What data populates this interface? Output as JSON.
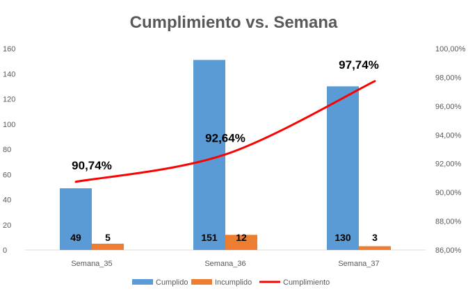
{
  "chart_data": {
    "type": "bar",
    "title": "Cumplimiento vs. Semana",
    "categories": [
      "Semana_35",
      "Semana_36",
      "Semana_37"
    ],
    "series": [
      {
        "name": "Cumplido",
        "kind": "bar",
        "axis": "left",
        "color": "#5B9BD5",
        "values": [
          49,
          151,
          130
        ]
      },
      {
        "name": "Incumplido",
        "kind": "bar",
        "axis": "left",
        "color": "#ED7D31",
        "values": [
          5,
          12,
          3
        ]
      },
      {
        "name": "Cumplimiento",
        "kind": "line",
        "axis": "right",
        "smooth": true,
        "color": "#FF0000",
        "values": [
          90.74,
          92.64,
          97.74
        ],
        "labels": [
          "90,74%",
          "92,64%",
          "97,74%"
        ]
      }
    ],
    "y_left": {
      "ylim": [
        0,
        160
      ],
      "ticks": [
        0,
        20,
        40,
        60,
        80,
        100,
        120,
        140,
        160
      ],
      "tick_labels": [
        "0",
        "20",
        "40",
        "60",
        "80",
        "100",
        "120",
        "140",
        "160"
      ]
    },
    "y_right": {
      "ylim": [
        86,
        100
      ],
      "ticks": [
        86,
        88,
        90,
        92,
        94,
        96,
        98,
        100
      ],
      "tick_labels": [
        "86,00%",
        "88,00%",
        "90,00%",
        "92,00%",
        "94,00%",
        "96,00%",
        "98,00%",
        "100,00%"
      ]
    },
    "grid": false,
    "legend_position": "bottom"
  }
}
